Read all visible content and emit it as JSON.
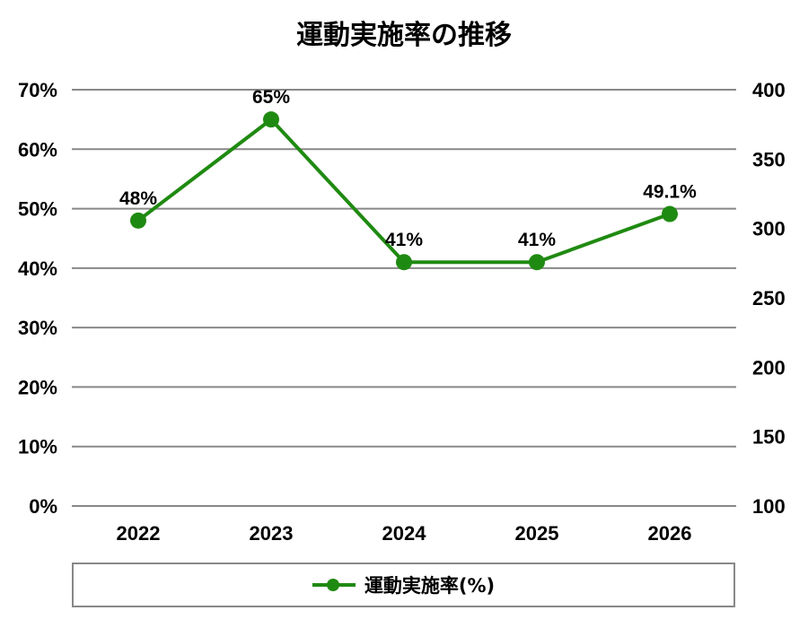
{
  "chart_data": {
    "type": "line",
    "title": "運動実施率の推移",
    "categories": [
      "2022",
      "2023",
      "2024",
      "2025",
      "2026"
    ],
    "series": [
      {
        "name": "運動実施率(%)",
        "values": [
          48,
          65,
          41,
          41,
          49.1
        ],
        "labels": [
          "48%",
          "65%",
          "41%",
          "41%",
          "49.1%"
        ]
      }
    ],
    "y_left": {
      "min": 0,
      "max": 70,
      "ticks": [
        "0%",
        "10%",
        "20%",
        "30%",
        "40%",
        "50%",
        "60%",
        "70%"
      ]
    },
    "y_right": {
      "min": 100,
      "max": 400,
      "ticks": [
        "100",
        "150",
        "200",
        "250",
        "300",
        "350",
        "400"
      ]
    },
    "grid": true,
    "legend_position": "bottom",
    "color": "#1f8a11",
    "grid_color": "#888888"
  }
}
